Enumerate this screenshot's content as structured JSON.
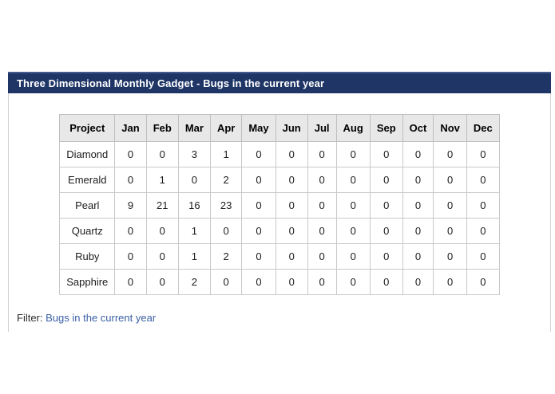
{
  "gadget": {
    "title": "Three Dimensional Monthly Gadget - Bugs in the current year"
  },
  "table": {
    "columns": [
      "Project",
      "Jan",
      "Feb",
      "Mar",
      "Apr",
      "May",
      "Jun",
      "Jul",
      "Aug",
      "Sep",
      "Oct",
      "Nov",
      "Dec"
    ],
    "rows": [
      {
        "project": "Diamond",
        "values": [
          "0",
          "0",
          "3",
          "1",
          "0",
          "0",
          "0",
          "0",
          "0",
          "0",
          "0",
          "0"
        ]
      },
      {
        "project": "Emerald",
        "values": [
          "0",
          "1",
          "0",
          "2",
          "0",
          "0",
          "0",
          "0",
          "0",
          "0",
          "0",
          "0"
        ]
      },
      {
        "project": "Pearl",
        "values": [
          "9",
          "21",
          "16",
          "23",
          "0",
          "0",
          "0",
          "0",
          "0",
          "0",
          "0",
          "0"
        ]
      },
      {
        "project": "Quartz",
        "values": [
          "0",
          "0",
          "1",
          "0",
          "0",
          "0",
          "0",
          "0",
          "0",
          "0",
          "0",
          "0"
        ]
      },
      {
        "project": "Ruby",
        "values": [
          "0",
          "0",
          "1",
          "2",
          "0",
          "0",
          "0",
          "0",
          "0",
          "0",
          "0",
          "0"
        ]
      },
      {
        "project": "Sapphire",
        "values": [
          "0",
          "0",
          "2",
          "0",
          "0",
          "0",
          "0",
          "0",
          "0",
          "0",
          "0",
          "0"
        ]
      }
    ]
  },
  "filter": {
    "label": "Filter:",
    "link_text": "Bugs in the current year"
  },
  "colors": {
    "title_bar": "#1e3566",
    "title_bar_highlight": "#46598f",
    "title_text": "#ffffff",
    "table_header_bg": "#e8e8e8",
    "table_border": "#c9c9c9",
    "link": "#3a5fa5"
  }
}
